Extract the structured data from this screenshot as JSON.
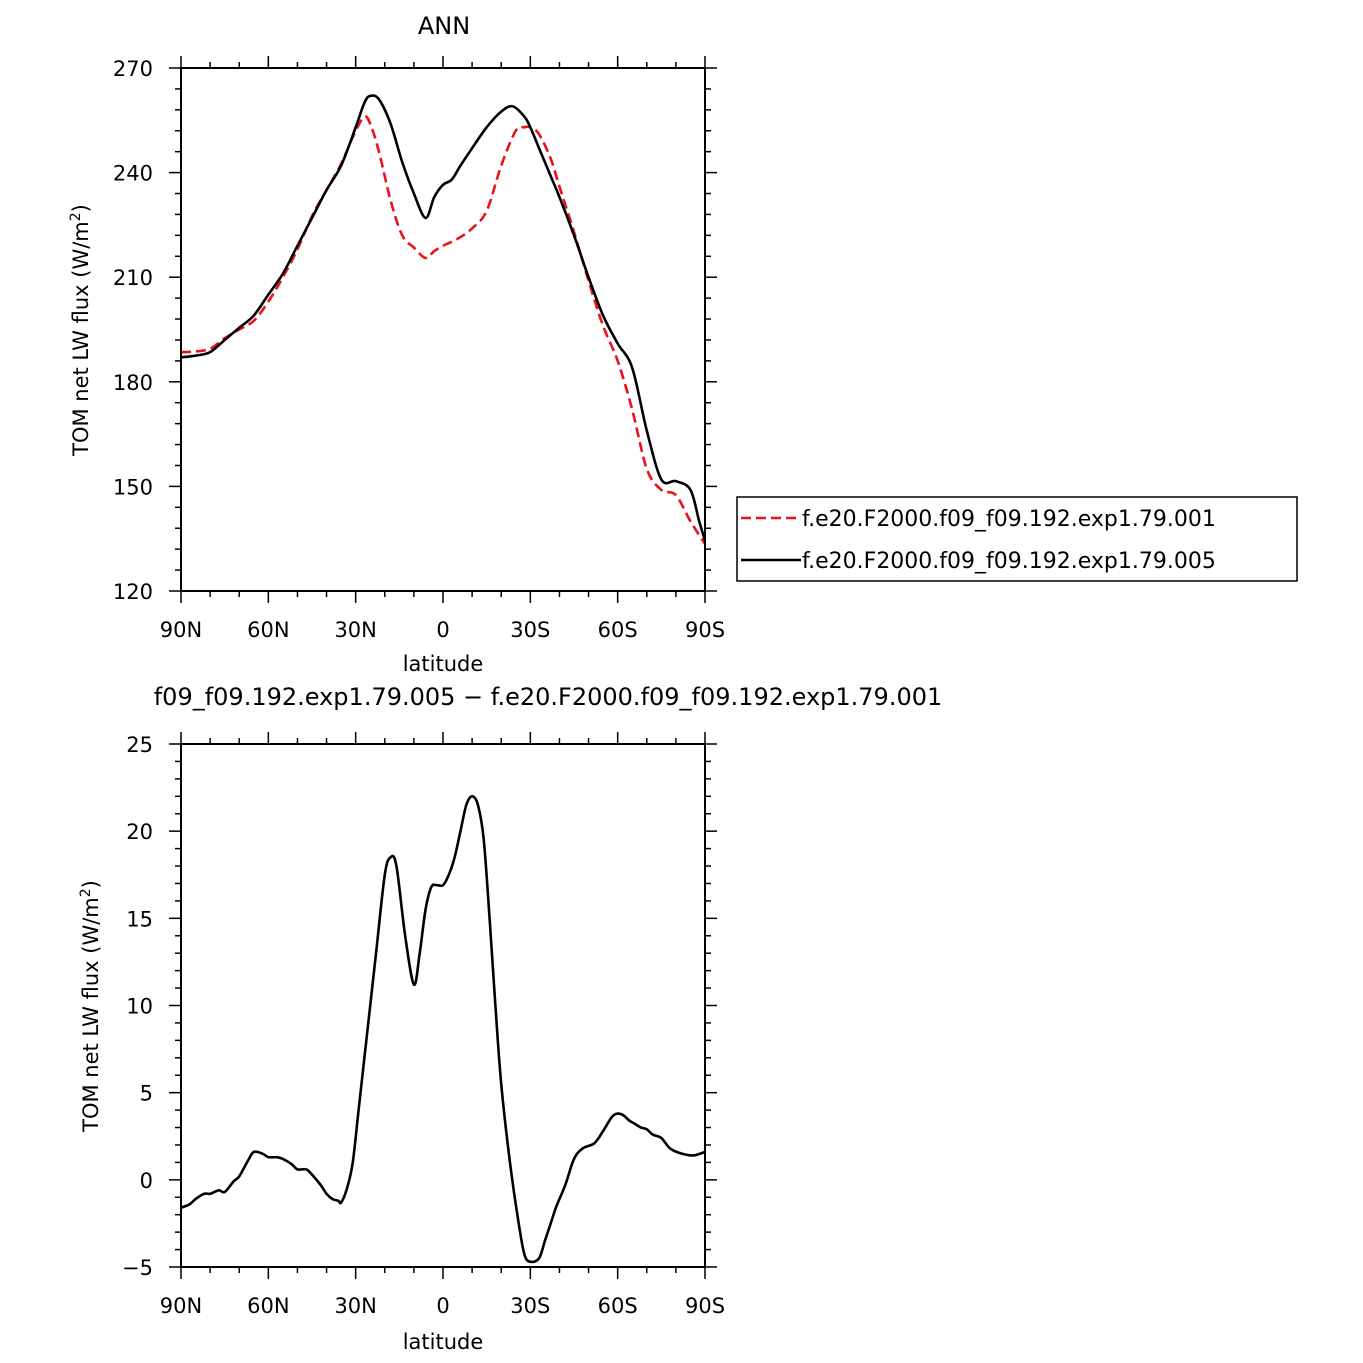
{
  "chart_data": [
    {
      "type": "line",
      "title": "ANN",
      "xlabel": "latitude",
      "ylabel": "TOM net LW flux (W/m²)",
      "ylabel_parts": {
        "base": "TOM net LW flux (W/m",
        "sup": "2",
        "close": ")"
      },
      "xlim": [
        -90,
        90
      ],
      "ylim": [
        120,
        270
      ],
      "x_ticks": [
        {
          "value": -90,
          "label": "90N"
        },
        {
          "value": -60,
          "label": "60N"
        },
        {
          "value": -30,
          "label": "30N"
        },
        {
          "value": 0,
          "label": "0"
        },
        {
          "value": 30,
          "label": "30S"
        },
        {
          "value": 60,
          "label": "60S"
        },
        {
          "value": 90,
          "label": "90S"
        }
      ],
      "y_ticks": [
        {
          "value": 120,
          "label": "120"
        },
        {
          "value": 150,
          "label": "150"
        },
        {
          "value": 180,
          "label": "180"
        },
        {
          "value": 210,
          "label": "210"
        },
        {
          "value": 240,
          "label": "240"
        },
        {
          "value": 270,
          "label": "270"
        }
      ],
      "legend_position": "right",
      "series": [
        {
          "name": "f.e20.F2000.f09_f09.192.exp1.79.001",
          "color": "#e8141b",
          "dash": "dashed",
          "x": [
            -90,
            -85,
            -80,
            -75,
            -70,
            -65,
            -60,
            -55,
            -50,
            -45,
            -40,
            -35,
            -30,
            -27,
            -25,
            -22,
            -18,
            -14,
            -10,
            -6,
            -3,
            0,
            5,
            10,
            15,
            20,
            25,
            28,
            30,
            33,
            37,
            40,
            45,
            50,
            55,
            60,
            65,
            70,
            75,
            80,
            85,
            90
          ],
          "y": [
            188.5,
            188.7,
            189.5,
            192.5,
            195,
            197.5,
            203,
            210,
            218,
            227.5,
            235,
            242.5,
            252,
            256,
            254,
            246,
            232,
            222,
            218.5,
            215.5,
            217.5,
            219,
            221,
            224,
            229,
            242,
            252,
            253,
            253,
            251,
            244,
            236,
            223,
            209,
            196,
            186,
            172,
            155,
            149,
            147.5,
            140,
            133.5
          ]
        },
        {
          "name": "f.e20.F2000.f09_f09.192.exp1.79.005",
          "color": "#000000",
          "dash": "solid",
          "x": [
            -90,
            -85,
            -80,
            -75,
            -70,
            -65,
            -60,
            -55,
            -50,
            -45,
            -40,
            -35,
            -30,
            -27,
            -25,
            -22,
            -18,
            -14,
            -10,
            -6,
            -3,
            0,
            3,
            6,
            10,
            15,
            20,
            24,
            28,
            30,
            33,
            37,
            40,
            45,
            50,
            55,
            60,
            65,
            70,
            75,
            80,
            85,
            88,
            90
          ],
          "y": [
            187,
            187.5,
            188.5,
            192,
            195.5,
            199,
            205,
            211,
            219,
            227,
            235,
            242,
            253,
            260,
            262,
            261,
            254,
            243,
            234,
            227,
            233,
            236.5,
            238,
            242,
            247,
            253,
            257.5,
            259,
            256,
            253,
            247,
            239,
            233,
            222,
            210,
            199,
            191,
            184,
            166,
            152,
            151.5,
            149,
            140,
            134.5
          ]
        }
      ]
    },
    {
      "type": "line",
      "title": "f09_f09.192.exp1.79.005 − f.e20.F2000.f09_f09.192.exp1.79.001",
      "xlabel": "latitude",
      "ylabel": "TOM net LW flux (W/m²)",
      "ylabel_parts": {
        "base": "TOM net LW flux (W/m",
        "sup": "2",
        "close": ")"
      },
      "xlim": [
        -90,
        90
      ],
      "ylim": [
        -5,
        25
      ],
      "x_ticks": [
        {
          "value": -90,
          "label": "90N"
        },
        {
          "value": -60,
          "label": "60N"
        },
        {
          "value": -30,
          "label": "30N"
        },
        {
          "value": 0,
          "label": "0"
        },
        {
          "value": 30,
          "label": "30S"
        },
        {
          "value": 60,
          "label": "60S"
        },
        {
          "value": 90,
          "label": "90S"
        }
      ],
      "y_ticks": [
        {
          "value": -5,
          "label": "−5"
        },
        {
          "value": 0,
          "label": "0"
        },
        {
          "value": 5,
          "label": "5"
        },
        {
          "value": 10,
          "label": "10"
        },
        {
          "value": 15,
          "label": "15"
        },
        {
          "value": 20,
          "label": "20"
        },
        {
          "value": 25,
          "label": "25"
        }
      ],
      "series": [
        {
          "color": "#000000",
          "dash": "solid",
          "x": [
            -90,
            -87,
            -85,
            -82,
            -80,
            -77,
            -75,
            -72,
            -70,
            -67,
            -65,
            -62,
            -60,
            -57,
            -55,
            -52,
            -50,
            -47,
            -45,
            -42,
            -40,
            -38,
            -36,
            -35,
            -33,
            -31,
            -29,
            -26,
            -23,
            -20,
            -18,
            -16,
            -13,
            -10,
            -8,
            -6,
            -4,
            -2,
            0,
            2,
            4,
            6,
            8,
            10,
            12,
            14,
            16,
            18,
            20,
            23,
            26,
            28,
            30,
            33,
            35,
            37,
            39,
            42,
            45,
            48,
            52,
            55,
            58,
            60,
            62,
            64,
            66,
            68,
            70,
            72,
            75,
            78,
            82,
            86,
            90
          ],
          "y": [
            -1.6,
            -1.4,
            -1.1,
            -0.8,
            -0.8,
            -0.6,
            -0.7,
            -0.1,
            0.2,
            1.1,
            1.6,
            1.5,
            1.3,
            1.3,
            1.2,
            0.9,
            0.6,
            0.6,
            0.3,
            -0.3,
            -0.8,
            -1.1,
            -1.2,
            -1.3,
            -0.5,
            1,
            4,
            8.5,
            13,
            17.5,
            18.5,
            18,
            14,
            11.2,
            13,
            15.5,
            16.8,
            16.9,
            16.9,
            17.5,
            18.5,
            20,
            21.5,
            22,
            21.5,
            19.5,
            15,
            10,
            5.5,
            1,
            -2.5,
            -4.3,
            -4.7,
            -4.5,
            -3.5,
            -2.5,
            -1.5,
            -0.3,
            1.2,
            1.8,
            2.1,
            2.8,
            3.6,
            3.8,
            3.7,
            3.4,
            3.2,
            3.0,
            2.9,
            2.6,
            2.4,
            1.8,
            1.5,
            1.4,
            1.6
          ]
        }
      ]
    }
  ]
}
